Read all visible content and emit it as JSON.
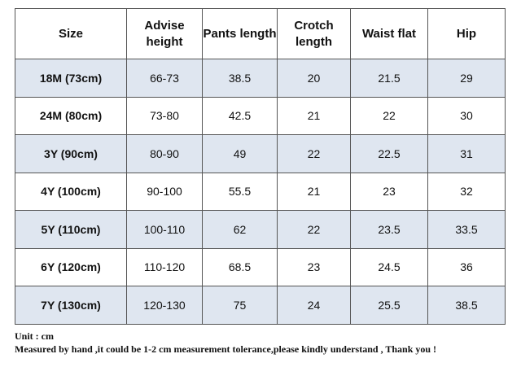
{
  "table": {
    "header": [
      "Size",
      "Advise height",
      "Pants length",
      "Crotch length",
      "Waist flat",
      "Hip"
    ],
    "rows": [
      [
        "18M (73cm)",
        "66-73",
        "38.5",
        "20",
        "21.5",
        "29"
      ],
      [
        "24M (80cm)",
        "73-80",
        "42.5",
        "21",
        "22",
        "30"
      ],
      [
        "3Y (90cm)",
        "80-90",
        "49",
        "22",
        "22.5",
        "31"
      ],
      [
        "4Y (100cm)",
        "90-100",
        "55.5",
        "21",
        "23",
        "32"
      ],
      [
        "5Y (110cm)",
        "100-110",
        "62",
        "22",
        "23.5",
        "33.5"
      ],
      [
        "6Y (120cm)",
        "110-120",
        "68.5",
        "23",
        "24.5",
        "36"
      ],
      [
        "7Y (130cm)",
        "120-130",
        "75",
        "24",
        "25.5",
        "38.5"
      ]
    ]
  },
  "notes": [
    "Unit : cm",
    "Measured by hand ,it could be 1-2 cm measurement tolerance,please kindly understand , Thank you !"
  ]
}
